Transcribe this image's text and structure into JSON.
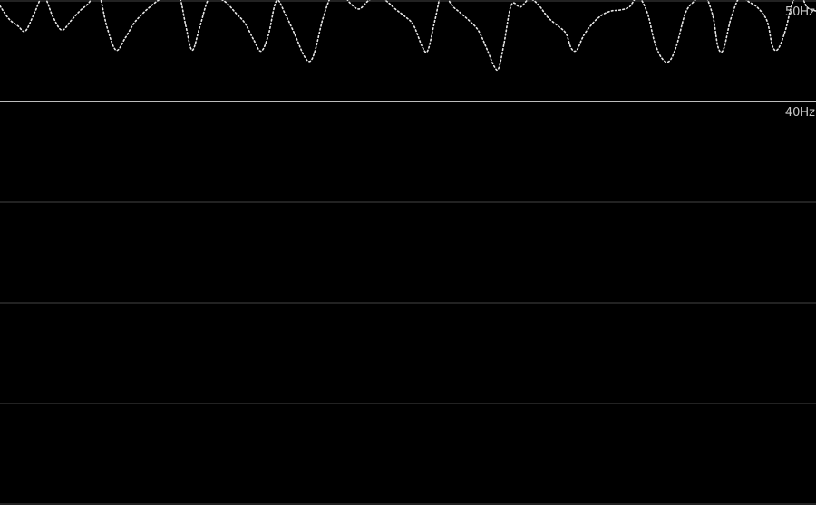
{
  "chart_data": {
    "type": "line",
    "title": "",
    "xlabel": "",
    "ylabel": "",
    "y_unit": "Hz",
    "ylim": [
      0,
      50
    ],
    "yticks": [
      0,
      10,
      20,
      30,
      40,
      50
    ],
    "tick_labels": [
      {
        "value": 50,
        "label": "50Hz"
      },
      {
        "value": 40,
        "label": "40Hz"
      }
    ],
    "reference_line": {
      "value": 40
    },
    "grid": true,
    "legend": "none",
    "colors": {
      "background": "#000000",
      "trace": "#e8e8e8",
      "reference_line": "#bdbdbd",
      "grid": "#2e2e2e",
      "tick_label": "#c8c8c8"
    },
    "series": [
      {
        "x": [
          0,
          10,
          20,
          28,
          38,
          48,
          58,
          68,
          78,
          88,
          98,
          108,
          118,
          128,
          138,
          148,
          158,
          168,
          178,
          188,
          198,
          205,
          212,
          220,
          230,
          240,
          250,
          260,
          270,
          280,
          288,
          296,
          305,
          315,
          325,
          335,
          342,
          348,
          356,
          366,
          376,
          386,
          396,
          406,
          416,
          426,
          436,
          446,
          456,
          466,
          472,
          480,
          488,
          498,
          508,
          518,
          528,
          538,
          545,
          550,
          556,
          564,
          574,
          584,
          594,
          604,
          614,
          624,
          630,
          636,
          644,
          654,
          664,
          674,
          684,
          694,
          704,
          714,
          722,
          730,
          738,
          746,
          756,
          766,
          776,
          786,
          792,
          798,
          806,
          816,
          826,
          836,
          846,
          852,
          858,
          866,
          874,
          882,
          890,
          900
        ],
        "y": [
          49.5,
          48.2,
          47.5,
          47.0,
          48.8,
          50.5,
          48.5,
          47.1,
          48.0,
          49.0,
          49.8,
          51.0,
          47.4,
          45.1,
          46.3,
          47.8,
          48.8,
          49.6,
          50.3,
          51.0,
          50.4,
          47.5,
          45.1,
          47.3,
          50.2,
          50.3,
          49.8,
          48.8,
          47.8,
          46.1,
          45.0,
          46.6,
          50.0,
          48.6,
          46.7,
          44.6,
          44.0,
          45.2,
          48.2,
          50.6,
          50.9,
          49.8,
          49.2,
          50.0,
          50.5,
          50.0,
          49.2,
          48.5,
          47.6,
          45.4,
          45.1,
          48.2,
          51.0,
          49.6,
          48.8,
          48.0,
          47.0,
          45.0,
          43.5,
          43.3,
          45.8,
          49.6,
          49.4,
          50.2,
          49.6,
          48.4,
          47.6,
          46.8,
          45.3,
          45.1,
          46.6,
          47.8,
          48.6,
          49.0,
          49.1,
          49.4,
          50.4,
          48.8,
          45.9,
          44.3,
          44.0,
          45.5,
          48.8,
          50.0,
          50.8,
          48.6,
          45.4,
          45.2,
          48.2,
          50.4,
          49.9,
          49.3,
          48.0,
          45.5,
          45.2,
          47.0,
          49.8,
          50.8,
          49.4,
          49.0
        ]
      }
    ]
  }
}
